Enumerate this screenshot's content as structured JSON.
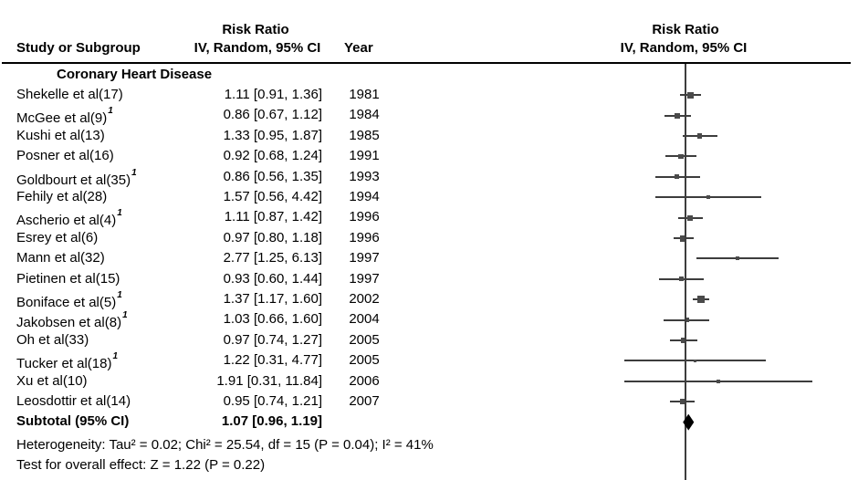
{
  "colors": {
    "text": "#000000",
    "rule": "#000000",
    "axis_line": "#3d3d3d",
    "ci_line": "#3d3d3d",
    "marker": "#4a4a4a",
    "diamond": "#000000",
    "background": "#ffffff"
  },
  "chart_data": {
    "type": "forest",
    "effect_measure": "Risk Ratio",
    "method": "IV, Random, 95% CI",
    "scale": "log",
    "null_line": 1,
    "legend_position": "none",
    "grid": false,
    "columns": {
      "study": "Study or Subgroup",
      "effect": [
        "Risk Ratio",
        "IV, Random, 95% CI"
      ],
      "year": "Year",
      "plot": [
        "Risk Ratio",
        "IV, Random, 95% CI"
      ]
    },
    "subgroup_label": "Coronary Heart Disease",
    "studies": [
      {
        "label": "Shekelle et al(17)",
        "footnote": null,
        "rr": 1.11,
        "lo": 0.91,
        "hi": 1.36,
        "year": "1981"
      },
      {
        "label": "McGee et al(9)",
        "footnote": "1",
        "rr": 0.86,
        "lo": 0.67,
        "hi": 1.12,
        "year": "1984"
      },
      {
        "label": "Kushi et al(13)",
        "footnote": null,
        "rr": 1.33,
        "lo": 0.95,
        "hi": 1.87,
        "year": "1985"
      },
      {
        "label": "Posner et al(16)",
        "footnote": null,
        "rr": 0.92,
        "lo": 0.68,
        "hi": 1.24,
        "year": "1991"
      },
      {
        "label": "Goldbourt et al(35)",
        "footnote": "1",
        "rr": 0.86,
        "lo": 0.56,
        "hi": 1.35,
        "year": "1993"
      },
      {
        "label": "Fehily et al(28)",
        "footnote": null,
        "rr": 1.57,
        "lo": 0.56,
        "hi": 4.42,
        "year": "1994"
      },
      {
        "label": "Ascherio et al(4)",
        "footnote": "1",
        "rr": 1.11,
        "lo": 0.87,
        "hi": 1.42,
        "year": "1996"
      },
      {
        "label": "Esrey et al(6)",
        "footnote": null,
        "rr": 0.97,
        "lo": 0.8,
        "hi": 1.18,
        "year": "1996"
      },
      {
        "label": "Mann et al(32)",
        "footnote": null,
        "rr": 2.77,
        "lo": 1.25,
        "hi": 6.13,
        "year": "1997"
      },
      {
        "label": "Pietinen et al(15)",
        "footnote": null,
        "rr": 0.93,
        "lo": 0.6,
        "hi": 1.44,
        "year": "1997"
      },
      {
        "label": "Boniface et al(5)",
        "footnote": "1",
        "rr": 1.37,
        "lo": 1.17,
        "hi": 1.6,
        "year": "2002"
      },
      {
        "label": "Jakobsen et al(8)",
        "footnote": "1",
        "rr": 1.03,
        "lo": 0.66,
        "hi": 1.6,
        "year": "2004"
      },
      {
        "label": "Oh et al(33)",
        "footnote": null,
        "rr": 0.97,
        "lo": 0.74,
        "hi": 1.27,
        "year": "2005"
      },
      {
        "label": "Tucker et al(18)",
        "footnote": "1",
        "rr": 1.22,
        "lo": 0.31,
        "hi": 4.77,
        "year": "2005"
      },
      {
        "label": "Xu et al(10)",
        "footnote": null,
        "rr": 1.91,
        "lo": 0.31,
        "hi": 11.84,
        "year": "2006"
      },
      {
        "label": "Leosdottir et al(14)",
        "footnote": null,
        "rr": 0.95,
        "lo": 0.74,
        "hi": 1.21,
        "year": "2007"
      }
    ],
    "subtotal": {
      "label": "Subtotal (95% CI)",
      "rr": 1.07,
      "lo": 0.96,
      "hi": 1.19
    },
    "heterogeneity_text": "Heterogeneity: Tau² = 0.02; Chi² = 25.54, df = 15 (P = 0.04); I² = 41%",
    "overall_effect_text": "Test for overall effect: Z = 1.22 (P = 0.22)"
  }
}
